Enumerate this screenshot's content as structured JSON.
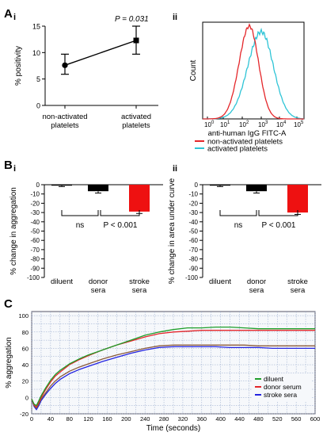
{
  "panel_labels": {
    "A": "A",
    "Ai": "i",
    "Aii": "ii",
    "B": "B",
    "Bi": "i",
    "Bii": "ii",
    "C": "C"
  },
  "colors": {
    "red": "#e4262a",
    "cyan": "#2ec4d6",
    "black": "#000000",
    "green": "#1f9e2a",
    "blue": "#2323e0",
    "brown": "#8a5a3a",
    "bar_red": "#ee1111"
  },
  "chart_data": [
    {
      "id": "Ai",
      "type": "line",
      "categories": [
        "non-activated\nplatelets",
        "activated\nplatelets"
      ],
      "values": [
        7.6,
        12.3
      ],
      "err_low": [
        5.9,
        9.7
      ],
      "err_high": [
        9.7,
        15.0
      ],
      "ylabel": "% positivity",
      "ylim": [
        0,
        15
      ],
      "yticks": [
        0,
        5,
        10,
        15
      ],
      "annotation": "P = 0.031",
      "markers": [
        "circle",
        "square"
      ]
    },
    {
      "id": "Aii",
      "type": "area",
      "xlabel": "anti-human IgG FITC-A",
      "ylabel": "Count",
      "xscale": "log",
      "xlim": [
        0.3,
        200000
      ],
      "xticks": [
        "10",
        "10",
        "10",
        "10",
        "10",
        "10"
      ],
      "xtick_exponents": [
        "0",
        "1",
        "2",
        "3",
        "4",
        "5"
      ],
      "legend_position": "bottom",
      "series": [
        {
          "name": "non-activated platelets",
          "color": "red"
        },
        {
          "name": "activated platelets",
          "color": "cyan"
        }
      ]
    },
    {
      "id": "Bi",
      "type": "bar",
      "categories": [
        "diluent",
        "donor\nsera",
        "stroke\nsera"
      ],
      "values": [
        -1,
        -7,
        -29
      ],
      "err": [
        1,
        2,
        2
      ],
      "colors": [
        "black",
        "black",
        "bar_red"
      ],
      "ylabel": "% change in aggregation",
      "ylim": [
        -100,
        0
      ],
      "yticks": [
        0,
        -10,
        -20,
        -30,
        -40,
        -50,
        -60,
        -70,
        -80,
        -90,
        -100
      ],
      "bracket_left": "ns",
      "bracket_right": "P < 0.001"
    },
    {
      "id": "Bii",
      "type": "bar",
      "categories": [
        "diluent",
        "donor\nsera",
        "stroke\nsera"
      ],
      "values": [
        -1,
        -7,
        -30
      ],
      "err": [
        1,
        2,
        2
      ],
      "colors": [
        "black",
        "black",
        "bar_red"
      ],
      "ylabel": "% change in area under curve",
      "ylim": [
        -100,
        0
      ],
      "yticks": [
        0,
        -10,
        -20,
        -30,
        -40,
        -50,
        -60,
        -70,
        -80,
        -90,
        -100
      ],
      "bracket_left": "ns",
      "bracket_right": "P < 0.001"
    },
    {
      "id": "C",
      "type": "line",
      "xlabel": "Time (seconds)",
      "ylabel": "% aggregation",
      "xlim": [
        0,
        600
      ],
      "ylim": [
        -20,
        105
      ],
      "xticks": [
        0,
        40,
        80,
        120,
        160,
        200,
        240,
        280,
        320,
        360,
        400,
        440,
        480,
        520,
        560,
        600
      ],
      "yticks": [
        -20,
        0,
        20,
        40,
        60,
        80,
        100
      ],
      "grid": true,
      "legend_position": "bottom-right",
      "series": [
        {
          "name": "diluent",
          "color": "green",
          "x": [
            0,
            5,
            10,
            15,
            20,
            30,
            40,
            50,
            60,
            80,
            100,
            120,
            150,
            180,
            210,
            240,
            270,
            300,
            330,
            360,
            390,
            420,
            450,
            480,
            510,
            540,
            570,
            600
          ],
          "y": [
            -2,
            -8,
            -10,
            -4,
            2,
            12,
            21,
            28,
            33,
            41,
            47,
            52,
            58,
            64,
            70,
            76,
            80,
            83,
            85,
            85,
            86,
            86,
            85,
            84,
            84,
            84,
            84,
            84
          ]
        },
        {
          "name": "donor serum",
          "color": "red",
          "x": [
            0,
            5,
            10,
            15,
            20,
            30,
            40,
            50,
            60,
            80,
            100,
            120,
            150,
            180,
            210,
            240,
            270,
            300,
            330,
            360,
            390,
            420,
            450,
            480,
            510,
            540,
            570,
            600
          ],
          "y": [
            -2,
            -9,
            -12,
            -6,
            0,
            10,
            19,
            26,
            31,
            40,
            46,
            51,
            58,
            64,
            69,
            74,
            78,
            80,
            81,
            82,
            82,
            82,
            82,
            82,
            82,
            82,
            82,
            82
          ]
        },
        {
          "name": "stroke sera",
          "color": "blue",
          "x": [
            0,
            5,
            10,
            15,
            20,
            30,
            40,
            50,
            60,
            80,
            100,
            120,
            150,
            180,
            210,
            240,
            270,
            300,
            330,
            360,
            390,
            420,
            450,
            480,
            510,
            540,
            570,
            600
          ],
          "y": [
            -2,
            -11,
            -15,
            -10,
            -4,
            4,
            11,
            17,
            22,
            29,
            34,
            38,
            44,
            49,
            54,
            58,
            61,
            62,
            62,
            62,
            62,
            61,
            61,
            61,
            60,
            60,
            60,
            60
          ]
        },
        {
          "name": "",
          "color": "brown",
          "x": [
            0,
            5,
            10,
            15,
            20,
            30,
            40,
            50,
            60,
            80,
            100,
            120,
            150,
            180,
            210,
            240,
            270,
            300,
            330,
            360,
            390,
            420,
            450,
            480,
            510,
            540,
            570,
            600
          ],
          "y": [
            -2,
            -10,
            -13,
            -8,
            -2,
            6,
            14,
            20,
            25,
            32,
            37,
            41,
            47,
            52,
            56,
            60,
            63,
            64,
            64,
            64,
            64,
            64,
            64,
            63,
            63,
            63,
            63,
            63
          ]
        }
      ]
    }
  ]
}
